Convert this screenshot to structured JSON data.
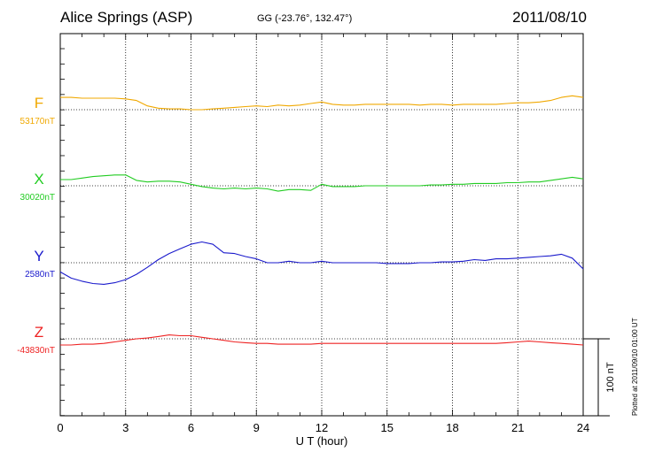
{
  "header": {
    "station": "Alice Springs (ASP)",
    "coords": "GG (-23.76°, 132.47°)",
    "date": "2011/08/10"
  },
  "footer": {
    "plotted": "Plotted at 2011/09/10 01:00 UT"
  },
  "chart_data": {
    "type": "line",
    "title": "Alice Springs (ASP)",
    "xlabel": "U T (hour)",
    "xlim": [
      0,
      24
    ],
    "x_ticks": [
      "0",
      "3",
      "6",
      "9",
      "12",
      "15",
      "18",
      "21",
      "24"
    ],
    "grid": true,
    "scale_bar": "100 nT",
    "series": [
      {
        "name": "F",
        "baseline": "53170nT",
        "color": "#f0a800",
        "x": [
          0,
          0.5,
          1,
          1.5,
          2,
          2.5,
          3,
          3.5,
          4,
          4.5,
          5,
          5.5,
          6,
          6.5,
          7,
          7.5,
          8,
          8.5,
          9,
          9.5,
          10,
          10.5,
          11,
          11.5,
          12,
          12.5,
          13,
          13.5,
          14,
          14.5,
          15,
          15.5,
          16,
          16.5,
          17,
          17.5,
          18,
          18.5,
          19,
          19.5,
          20,
          20.5,
          21,
          21.5,
          22,
          22.5,
          23,
          23.5,
          24
        ],
        "values": [
          16,
          16,
          15,
          15,
          15,
          15,
          14,
          12,
          5,
          2,
          1,
          1,
          0,
          0,
          1,
          2,
          3,
          4,
          5,
          4,
          6,
          5,
          6,
          8,
          10,
          7,
          6,
          6,
          7,
          7,
          7,
          7,
          7,
          6,
          7,
          7,
          6,
          7,
          7,
          7,
          7,
          8,
          9,
          9,
          10,
          12,
          16,
          18,
          16
        ]
      },
      {
        "name": "X",
        "baseline": "30020nT",
        "color": "#22cc22",
        "x": [
          0,
          0.5,
          1,
          1.5,
          2,
          2.5,
          3,
          3.5,
          4,
          4.5,
          5,
          5.5,
          6,
          6.5,
          7,
          7.5,
          8,
          8.5,
          9,
          9.5,
          10,
          10.5,
          11,
          11.5,
          12,
          12.5,
          13,
          13.5,
          14,
          14.5,
          15,
          15.5,
          16,
          16.5,
          17,
          17.5,
          18,
          18.5,
          19,
          19.5,
          20,
          20.5,
          21,
          21.5,
          22,
          22.5,
          23,
          23.5,
          24
        ],
        "values": [
          8,
          8,
          10,
          12,
          13,
          14,
          14,
          7,
          5,
          6,
          6,
          5,
          2,
          -1,
          -3,
          -4,
          -3,
          -4,
          -3,
          -4,
          -7,
          -5,
          -5,
          -6,
          2,
          -1,
          -1,
          -1,
          0,
          0,
          0,
          0,
          0,
          0,
          1,
          1,
          2,
          2,
          3,
          3,
          3,
          4,
          4,
          5,
          5,
          7,
          9,
          11,
          9
        ]
      },
      {
        "name": "Y",
        "baseline": "2580nT",
        "color": "#1a1acc",
        "x": [
          0,
          0.5,
          1,
          1.5,
          2,
          2.5,
          3,
          3.5,
          4,
          4.5,
          5,
          5.5,
          6,
          6.5,
          7,
          7.5,
          8,
          8.5,
          9,
          9.5,
          10,
          10.5,
          11,
          11.5,
          12,
          12.5,
          13,
          13.5,
          14,
          14.5,
          15,
          15.5,
          16,
          16.5,
          17,
          17.5,
          18,
          18.5,
          19,
          19.5,
          20,
          20.5,
          21,
          21.5,
          22,
          22.5,
          23,
          23.5,
          24
        ],
        "values": [
          -12,
          -20,
          -24,
          -27,
          -28,
          -26,
          -22,
          -15,
          -6,
          4,
          12,
          18,
          24,
          27,
          24,
          13,
          12,
          8,
          5,
          0,
          0,
          2,
          0,
          0,
          2,
          0,
          0,
          0,
          0,
          0,
          -1,
          -1,
          -1,
          0,
          0,
          1,
          1,
          2,
          4,
          3,
          5,
          5,
          6,
          7,
          8,
          9,
          11,
          6,
          -8
        ]
      },
      {
        "name": "Z",
        "baseline": "-43830nT",
        "color": "#ee2222",
        "x": [
          0,
          0.5,
          1,
          1.5,
          2,
          2.5,
          3,
          3.5,
          4,
          4.5,
          5,
          5.5,
          6,
          6.5,
          7,
          7.5,
          8,
          8.5,
          9,
          9.5,
          10,
          10.5,
          11,
          11.5,
          12,
          12.5,
          13,
          13.5,
          14,
          14.5,
          15,
          15.5,
          16,
          16.5,
          17,
          17.5,
          18,
          18.5,
          19,
          19.5,
          20,
          20.5,
          21,
          21.5,
          22,
          22.5,
          23,
          23.5,
          24
        ],
        "values": [
          -8,
          -8,
          -7,
          -7,
          -6,
          -4,
          -2,
          0,
          1,
          3,
          5,
          4,
          4,
          2,
          0,
          -2,
          -4,
          -5,
          -6,
          -6,
          -7,
          -7,
          -7,
          -7,
          -6,
          -6,
          -6,
          -6,
          -6,
          -6,
          -6,
          -6,
          -6,
          -6,
          -6,
          -6,
          -6,
          -6,
          -6,
          -6,
          -6,
          -5,
          -4,
          -3,
          -4,
          -5,
          -6,
          -7,
          -8
        ]
      }
    ]
  }
}
